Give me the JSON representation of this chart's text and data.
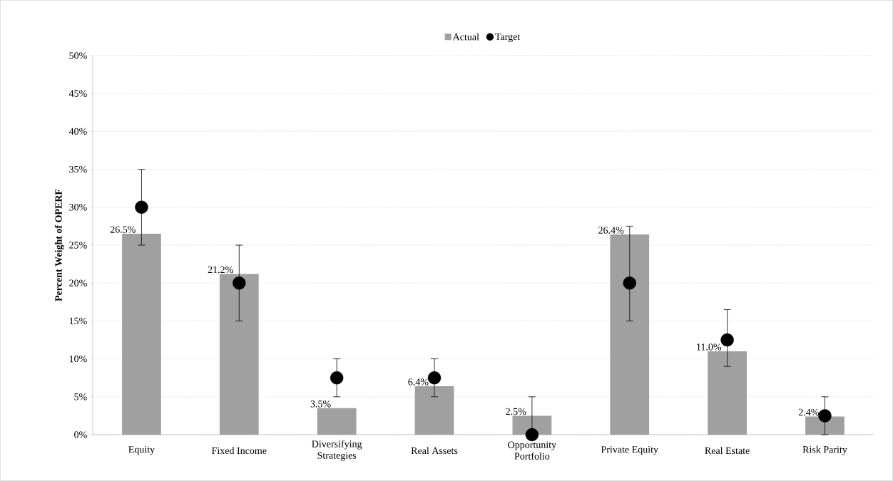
{
  "chart_data": {
    "type": "bar",
    "ylabel": "Percent Weight of OPERF",
    "categories": [
      "Equity",
      "Fixed Income",
      "Diversifying Strategies",
      "Real Assets",
      "Opportunity Portfolio",
      "Private Equity",
      "Real Estate",
      "Risk Parity"
    ],
    "series": [
      {
        "name": "Actual",
        "color": "#a0a0a0",
        "values": [
          26.5,
          21.2,
          3.5,
          6.4,
          2.5,
          26.4,
          11.0,
          2.4
        ],
        "value_labels": [
          "26.5%",
          "21.2%",
          "3.5%",
          "6.4%",
          "2.5%",
          "26.4%",
          "11.0%",
          "2.4%"
        ]
      },
      {
        "name": "Target",
        "type": "scatter",
        "color": "#000000",
        "marker": "circle",
        "x": [
          "Equity",
          "Fixed Income",
          "Diversifying Strategies",
          "Real Assets",
          "Opportunity Portfolio",
          "Private Equity",
          "Real Estate",
          "Risk Parity"
        ],
        "values": [
          30,
          20,
          7.5,
          7.5,
          0,
          20,
          12.5,
          2.5
        ],
        "errors": [
          [
            25,
            35
          ],
          [
            15,
            25
          ],
          [
            5,
            10
          ],
          [
            5,
            10
          ],
          [
            0,
            5
          ],
          [
            15,
            27.5
          ],
          [
            9,
            16.5
          ],
          [
            0,
            5
          ]
        ]
      }
    ],
    "ylim": [
      0,
      50
    ],
    "yticks": [
      {
        "value": 0,
        "label": "0%"
      },
      {
        "value": 5,
        "label": "5%"
      },
      {
        "value": 10,
        "label": "10%"
      },
      {
        "value": 15,
        "label": "15%"
      },
      {
        "value": 20,
        "label": "20%"
      },
      {
        "value": 25,
        "label": "25%"
      },
      {
        "value": 30,
        "label": "30%"
      },
      {
        "value": 35,
        "label": "35%"
      },
      {
        "value": 40,
        "label": "40%"
      },
      {
        "value": 45,
        "label": "45%"
      },
      {
        "value": 50,
        "label": "50%"
      }
    ],
    "grid": "y",
    "legend": "top"
  }
}
